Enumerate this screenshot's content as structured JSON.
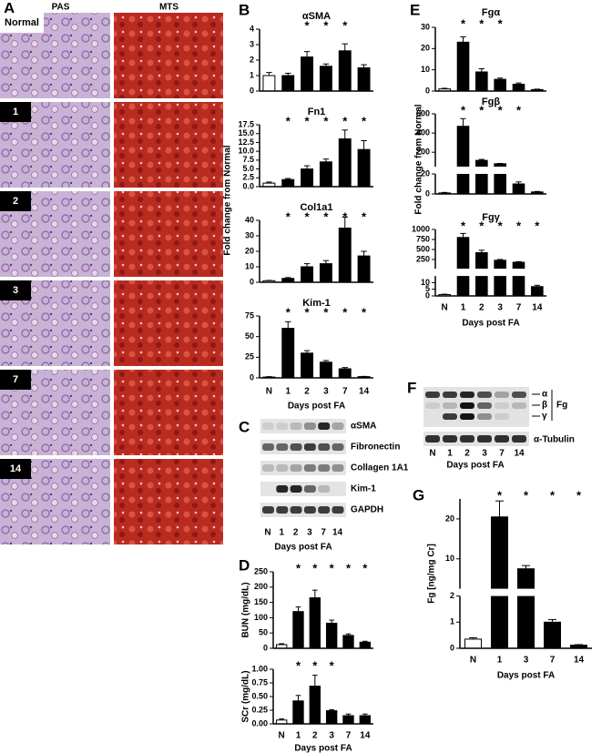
{
  "chart_data": [
    {
      "type": "bar",
      "title": "αSMA",
      "categories": [
        "N",
        "1",
        "2",
        "3",
        "7",
        "14"
      ],
      "values": [
        1.0,
        1.0,
        2.2,
        1.6,
        2.6,
        1.5
      ],
      "errors": [
        0.2,
        0.15,
        0.35,
        0.15,
        0.45,
        0.2
      ],
      "colors": [
        "#ffffff",
        "#000000",
        "#000000",
        "#000000",
        "#000000",
        "#000000"
      ],
      "ylim": [
        0,
        4
      ],
      "yticks": [
        0,
        1,
        2,
        3,
        4
      ],
      "significant": [
        false,
        false,
        true,
        true,
        true,
        false
      ],
      "significance_label": "*",
      "show_categories": false
    },
    {
      "type": "bar",
      "title": "Fn1",
      "categories": [
        "N",
        "1",
        "2",
        "3",
        "7",
        "14"
      ],
      "values": [
        1.0,
        2.0,
        5.0,
        7.0,
        13.5,
        10.5
      ],
      "errors": [
        0.3,
        0.3,
        0.9,
        0.8,
        2.5,
        2.5
      ],
      "colors": [
        "#ffffff",
        "#000000",
        "#000000",
        "#000000",
        "#000000",
        "#000000"
      ],
      "ylim": [
        0,
        17.5
      ],
      "yticks": [
        {
          "value": 0,
          "label": "0.0"
        },
        2.5,
        {
          "value": 5,
          "label": "5.0"
        },
        7.5,
        {
          "value": 10,
          "label": "10.0"
        },
        12.5,
        {
          "value": 15,
          "label": "15.0"
        },
        17.5
      ],
      "significant": [
        false,
        true,
        true,
        true,
        true,
        true
      ],
      "significance_label": "*",
      "show_categories": false
    },
    {
      "type": "bar",
      "title": "Col1a1",
      "categories": [
        "N",
        "1",
        "2",
        "3",
        "7",
        "14"
      ],
      "values": [
        1.0,
        2.5,
        10,
        12,
        35,
        17
      ],
      "errors": [
        0.2,
        0.5,
        2,
        2,
        7,
        3
      ],
      "colors": [
        "#ffffff",
        "#000000",
        "#000000",
        "#000000",
        "#000000",
        "#000000"
      ],
      "ylim": [
        0,
        40
      ],
      "yticks": [
        0,
        10,
        20,
        30,
        40
      ],
      "significant": [
        false,
        true,
        true,
        true,
        true,
        true
      ],
      "significance_label": "*",
      "show_categories": false
    },
    {
      "type": "bar",
      "title": "Kim-1",
      "categories": [
        "N",
        "1",
        "2",
        "3",
        "7",
        "14"
      ],
      "values": [
        1.0,
        60,
        30,
        19,
        11,
        1.5
      ],
      "errors": [
        0.5,
        8,
        3,
        2,
        1.5,
        0.3
      ],
      "colors": [
        "#ffffff",
        "#000000",
        "#000000",
        "#000000",
        "#000000",
        "#000000"
      ],
      "ylim": [
        0,
        75
      ],
      "yticks": [
        0,
        25,
        50,
        75
      ],
      "significant": [
        false,
        true,
        true,
        true,
        true,
        true
      ],
      "significance_label": "*",
      "show_categories": true,
      "xlabel": "Days post FA"
    },
    {
      "type": "bar",
      "ylabel": "BUN (mg/dL)",
      "categories": [
        "N",
        "1",
        "2",
        "3",
        "7",
        "14"
      ],
      "values": [
        12,
        120,
        165,
        82,
        42,
        20
      ],
      "errors": [
        3,
        15,
        25,
        10,
        5,
        3
      ],
      "colors": [
        "#ffffff",
        "#000000",
        "#000000",
        "#000000",
        "#000000",
        "#000000"
      ],
      "ylim": [
        0,
        250
      ],
      "yticks": [
        0,
        50,
        100,
        150,
        200,
        250
      ],
      "significant": [
        false,
        true,
        true,
        true,
        true,
        true
      ],
      "significance_label": "*",
      "show_categories": false
    },
    {
      "type": "bar",
      "ylabel": "SCr (mg/dL)",
      "categories": [
        "N",
        "1",
        "2",
        "3",
        "7",
        "14"
      ],
      "values": [
        0.07,
        0.42,
        0.69,
        0.24,
        0.15,
        0.15
      ],
      "errors": [
        0.02,
        0.1,
        0.2,
        0.02,
        0.03,
        0.03
      ],
      "colors": [
        "#ffffff",
        "#000000",
        "#000000",
        "#000000",
        "#000000",
        "#000000"
      ],
      "ylim": [
        0,
        1
      ],
      "yticks": [
        {
          "value": 0,
          "label": "0.00"
        },
        0.25,
        {
          "value": 0.5,
          "label": "0.50"
        },
        0.75,
        {
          "value": 1,
          "label": "1.00"
        }
      ],
      "significant": [
        false,
        true,
        true,
        true,
        false,
        false
      ],
      "significance_label": "*",
      "show_categories": true,
      "xlabel": "Days post FA"
    },
    {
      "type": "bar",
      "title": "Fgα",
      "categories": [
        "N",
        "1",
        "2",
        "3",
        "7",
        "14"
      ],
      "values": [
        1.0,
        23,
        9,
        5.5,
        3.2,
        0.7
      ],
      "errors": [
        0.3,
        2.5,
        1.5,
        0.6,
        0.6,
        0.2
      ],
      "colors": [
        "#ffffff",
        "#000000",
        "#000000",
        "#000000",
        "#000000",
        "#000000"
      ],
      "ylim": [
        0,
        30
      ],
      "yticks": [
        0,
        10,
        20,
        30
      ],
      "significant": [
        false,
        true,
        true,
        true,
        false,
        false
      ],
      "significance_label": "*",
      "show_categories": false
    },
    {
      "type": "bar",
      "title": "Fgβ",
      "categories": [
        "N",
        "1",
        "2",
        "3",
        "7",
        "14"
      ],
      "values": [
        1.0,
        470,
        115,
        80,
        10,
        2
      ],
      "errors": [
        0.5,
        80,
        10,
        3,
        2,
        0.5
      ],
      "colors": [
        "#ffffff",
        "#000000",
        "#000000",
        "#000000",
        "#000000",
        "#000000"
      ],
      "axis_segments": [
        {
          "ylim": [
            0,
            20
          ],
          "yticks": [
            0,
            20
          ]
        },
        {
          "ylim": [
            50,
            600
          ],
          "yticks": [
            200,
            400,
            600
          ]
        }
      ],
      "significant": [
        false,
        true,
        true,
        true,
        true,
        false
      ],
      "significance_label": "*",
      "show_categories": false
    },
    {
      "type": "bar",
      "title": "Fgγ",
      "categories": [
        "N",
        "1",
        "2",
        "3",
        "7",
        "14"
      ],
      "values": [
        1.0,
        800,
        420,
        230,
        180,
        7
      ],
      "errors": [
        0.3,
        100,
        60,
        20,
        15,
        1
      ],
      "colors": [
        "#ffffff",
        "#000000",
        "#000000",
        "#000000",
        "#000000",
        "#000000"
      ],
      "axis_segments": [
        {
          "ylim": [
            0,
            15
          ],
          "yticks": [
            0,
            5,
            10
          ]
        },
        {
          "ylim": [
            20,
            1000
          ],
          "yticks": [
            250,
            500,
            750,
            1000
          ]
        }
      ],
      "significant": [
        false,
        true,
        true,
        true,
        true,
        true
      ],
      "significance_label": "*",
      "show_categories": true,
      "xlabel": "Days post FA"
    },
    {
      "type": "bar",
      "ylabel": "Fg [ng/mg Cr]",
      "categories": [
        "N",
        "1",
        "3",
        "7",
        "14"
      ],
      "values": [
        0.35,
        20.5,
        7.5,
        1.0,
        0.12
      ],
      "errors": [
        0.05,
        4,
        0.8,
        0.1,
        0.02
      ],
      "colors": [
        "#ffffff",
        "#000000",
        "#000000",
        "#000000",
        "#000000"
      ],
      "axis_segments": [
        {
          "ylim": [
            0,
            2
          ],
          "yticks": [
            0,
            1,
            2
          ]
        },
        {
          "ylim": [
            2.5,
            25
          ],
          "yticks": [
            10,
            20
          ]
        }
      ],
      "significant": [
        false,
        true,
        true,
        true,
        true
      ],
      "significance_label": "*",
      "show_categories": true,
      "xlabel": "Days post FA"
    }
  ],
  "figure": {
    "panels": [
      "A",
      "B",
      "C",
      "D",
      "E",
      "F",
      "G"
    ],
    "panel_a": {
      "columns": [
        "PAS",
        "MTS"
      ],
      "rows": [
        "Normal",
        "1",
        "2",
        "3",
        "7",
        "14"
      ]
    },
    "panel_b": {
      "ylabel": "Fold change from Normal"
    },
    "panel_c": {
      "proteins": [
        "αSMA",
        "Fibronectin",
        "Collagen 1A1",
        "Kim-1",
        "GAPDH"
      ],
      "lanes": [
        "N",
        "1",
        "2",
        "3",
        "7",
        "14"
      ],
      "xlabel": "Days post FA"
    },
    "panel_e": {
      "ylabel": "Fold change from Normal"
    },
    "panel_f": {
      "bands": [
        "α",
        "β",
        "γ"
      ],
      "group": "Fg",
      "loading": "α-Tubulin",
      "lanes": [
        "N",
        "1",
        "2",
        "3",
        "7",
        "14"
      ],
      "xlabel": "Days post FA"
    }
  }
}
